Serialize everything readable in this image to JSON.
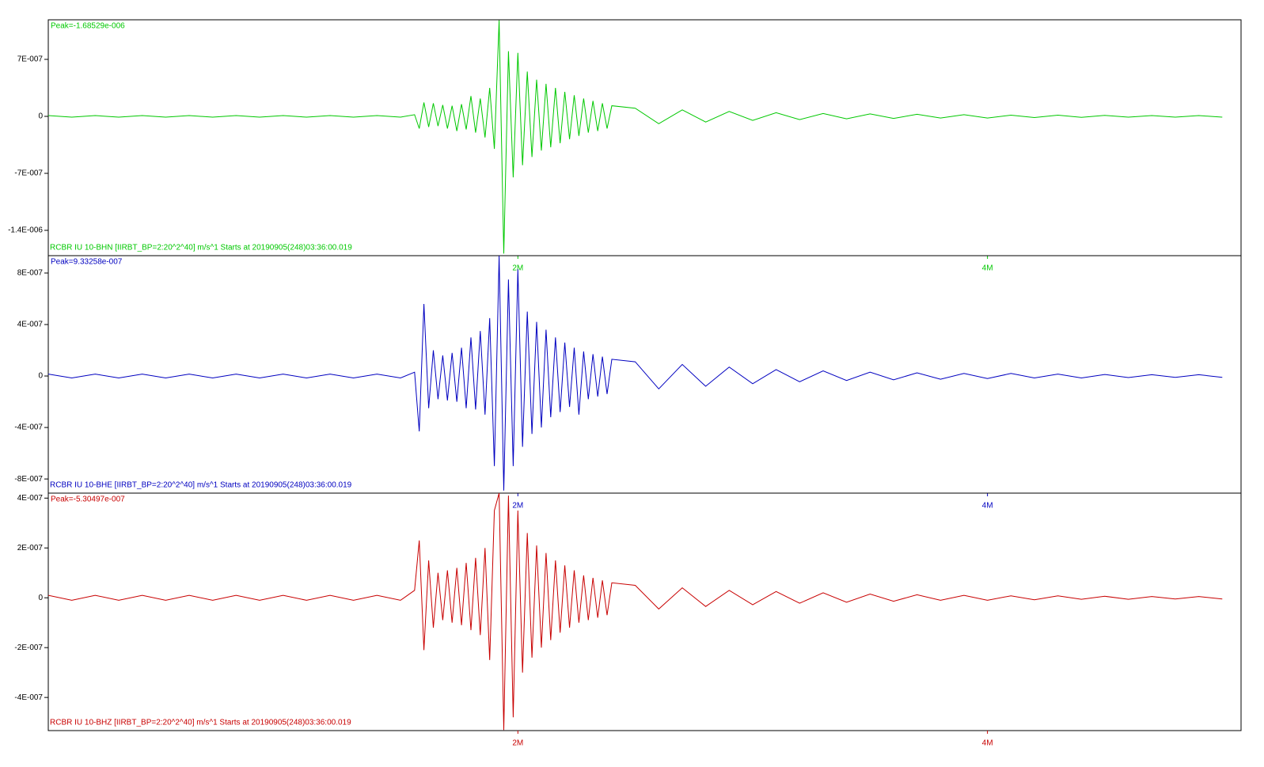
{
  "chart_data": [
    {
      "type": "line",
      "annotation": "Peak=-1.68529e-006",
      "x": [
        0,
        0.1,
        0.2,
        0.3,
        0.4,
        0.5,
        0.6,
        0.7,
        0.8,
        0.9,
        1.0,
        1.1,
        1.2,
        1.3,
        1.4,
        1.5,
        1.56,
        1.58,
        1.6,
        1.62,
        1.64,
        1.66,
        1.68,
        1.7,
        1.72,
        1.74,
        1.76,
        1.78,
        1.8,
        1.82,
        1.84,
        1.86,
        1.88,
        1.9,
        1.92,
        1.94,
        1.96,
        1.98,
        2.0,
        2.02,
        2.04,
        2.06,
        2.08,
        2.1,
        2.12,
        2.14,
        2.16,
        2.18,
        2.2,
        2.22,
        2.24,
        2.26,
        2.28,
        2.3,
        2.32,
        2.34,
        2.36,
        2.38,
        2.4,
        2.5,
        2.6,
        2.7,
        2.8,
        2.9,
        3.0,
        3.1,
        3.2,
        3.3,
        3.4,
        3.5,
        3.6,
        3.7,
        3.8,
        3.9,
        4.0,
        4.1,
        4.2,
        4.3,
        4.4,
        4.5,
        4.6,
        4.7,
        4.8,
        4.9,
        5.0
      ],
      "series": [
        {
          "name": "RCBR IU 10-BHN  [IIRBT_BP=2:20^2^40] m/s^1 Starts at 20190905(248)03:36:00.019",
          "color": "#00c800",
          "values": [
            1e-08,
            -1e-08,
            1e-08,
            -1e-08,
            1e-08,
            -1e-08,
            1e-08,
            -1e-08,
            1e-08,
            -1e-08,
            1e-08,
            -1e-08,
            1e-08,
            -1e-08,
            1e-08,
            -1e-08,
            2e-08,
            -1.5e-07,
            1.7e-07,
            -1.3e-07,
            1.6e-07,
            -1.2e-07,
            1.4e-07,
            -1.5e-07,
            1.3e-07,
            -1.8e-07,
            1.5e-07,
            -1.6e-07,
            2.5e-07,
            -2e-07,
            2.2e-07,
            -2.6e-07,
            3.5e-07,
            -4e-07,
            1.18e-06,
            -1.68529e-06,
            8e-07,
            -7.5e-07,
            7.8e-07,
            -6e-07,
            5.5e-07,
            -5e-07,
            4.5e-07,
            -4.2e-07,
            4e-07,
            -3.8e-07,
            3.5e-07,
            -3.3e-07,
            3e-07,
            -2.8e-07,
            2.6e-07,
            -2.4e-07,
            2.2e-07,
            -2e-07,
            1.9e-07,
            -1.8e-07,
            1.6e-07,
            -1.5e-07,
            1.3e-07,
            1e-07,
            -9e-08,
            8e-08,
            -7e-08,
            6e-08,
            -5e-08,
            4.5e-08,
            -4e-08,
            3.5e-08,
            -3e-08,
            3e-08,
            -2.5e-08,
            2.5e-08,
            -2e-08,
            2e-08,
            -2e-08,
            1.5e-08,
            -1.5e-08,
            1.5e-08,
            -1.2e-08,
            1.2e-08,
            -1e-08,
            1e-08,
            -1e-08,
            1e-08,
            -1e-08
          ]
        }
      ],
      "xlim": [
        0,
        5.08
      ],
      "xticks": [
        {
          "value": 2,
          "label": "2M"
        },
        {
          "value": 4,
          "label": "4M"
        }
      ],
      "ylim": [
        -1.711e-06,
        1.186e-06
      ],
      "yticks": [
        {
          "value": 7e-07,
          "label": "7E-007"
        },
        0,
        {
          "value": -7e-07,
          "label": "-7E-007"
        },
        {
          "value": -1.4e-06,
          "label": "-1.4E-006"
        }
      ]
    },
    {
      "type": "line",
      "annotation": "Peak=9.33258e-007",
      "x": [
        0,
        0.1,
        0.2,
        0.3,
        0.4,
        0.5,
        0.6,
        0.7,
        0.8,
        0.9,
        1.0,
        1.1,
        1.2,
        1.3,
        1.4,
        1.5,
        1.56,
        1.58,
        1.6,
        1.62,
        1.64,
        1.66,
        1.68,
        1.7,
        1.72,
        1.74,
        1.76,
        1.78,
        1.8,
        1.82,
        1.84,
        1.86,
        1.88,
        1.9,
        1.92,
        1.94,
        1.96,
        1.98,
        2.0,
        2.02,
        2.04,
        2.06,
        2.08,
        2.1,
        2.12,
        2.14,
        2.16,
        2.18,
        2.2,
        2.22,
        2.24,
        2.26,
        2.28,
        2.3,
        2.32,
        2.34,
        2.36,
        2.38,
        2.4,
        2.5,
        2.6,
        2.7,
        2.8,
        2.9,
        3.0,
        3.1,
        3.2,
        3.3,
        3.4,
        3.5,
        3.6,
        3.7,
        3.8,
        3.9,
        4.0,
        4.1,
        4.2,
        4.3,
        4.4,
        4.5,
        4.6,
        4.7,
        4.8,
        4.9,
        5.0
      ],
      "series": [
        {
          "name": "RCBR IU 10-BHE  [IIRBT_BP=2:20^2^40] m/s^1 Starts at 20190905(248)03:36:00.019",
          "color": "#0000c0",
          "values": [
            1.5e-08,
            -1.5e-08,
            1.5e-08,
            -1.5e-08,
            1.5e-08,
            -1.5e-08,
            1.5e-08,
            -1.5e-08,
            1.5e-08,
            -1.5e-08,
            1.5e-08,
            -1.5e-08,
            1.5e-08,
            -1.5e-08,
            1.5e-08,
            -1.5e-08,
            3e-08,
            -4.3e-07,
            5.6e-07,
            -2.5e-07,
            2e-07,
            -1.8e-07,
            1.6e-07,
            -1.9e-07,
            1.8e-07,
            -2e-07,
            2.2e-07,
            -2.5e-07,
            3e-07,
            -2.6e-07,
            3.5e-07,
            -3e-07,
            4.5e-07,
            -7e-07,
            9.33258e-07,
            -8.9e-07,
            7.5e-07,
            -7e-07,
            8.3e-07,
            -5.5e-07,
            5e-07,
            -4.5e-07,
            4.2e-07,
            -4e-07,
            3.6e-07,
            -3.2e-07,
            3e-07,
            -2.8e-07,
            2.6e-07,
            -2.4e-07,
            2.2e-07,
            -3e-07,
            1.9e-07,
            -1.8e-07,
            1.7e-07,
            -1.6e-07,
            1.5e-07,
            -1.4e-07,
            1.3e-07,
            1.1e-07,
            -1e-07,
            9e-08,
            -8e-08,
            7e-08,
            -6e-08,
            5e-08,
            -4.5e-08,
            4e-08,
            -3.5e-08,
            3e-08,
            -3e-08,
            2.5e-08,
            -2.5e-08,
            2e-08,
            -2e-08,
            2e-08,
            -1.5e-08,
            1.5e-08,
            -1.5e-08,
            1.2e-08,
            -1.2e-08,
            1e-08,
            -1e-08,
            1e-08,
            -1e-08
          ]
        }
      ],
      "xlim": [
        0,
        5.08
      ],
      "xticks": [
        {
          "value": 2,
          "label": "2M"
        },
        {
          "value": 4,
          "label": "4M"
        }
      ],
      "ylim": [
        -9.1e-07,
        9.35e-07
      ],
      "yticks": [
        {
          "value": 8e-07,
          "label": "8E-007"
        },
        {
          "value": 4e-07,
          "label": "4E-007"
        },
        0,
        {
          "value": -4e-07,
          "label": "-4E-007"
        },
        {
          "value": -8e-07,
          "label": "-8E-007"
        }
      ]
    },
    {
      "type": "line",
      "annotation": "Peak=-5.30497e-007",
      "x": [
        0,
        0.1,
        0.2,
        0.3,
        0.4,
        0.5,
        0.6,
        0.7,
        0.8,
        0.9,
        1.0,
        1.1,
        1.2,
        1.3,
        1.4,
        1.5,
        1.56,
        1.58,
        1.6,
        1.62,
        1.64,
        1.66,
        1.68,
        1.7,
        1.72,
        1.74,
        1.76,
        1.78,
        1.8,
        1.82,
        1.84,
        1.86,
        1.88,
        1.9,
        1.92,
        1.94,
        1.96,
        1.98,
        2.0,
        2.02,
        2.04,
        2.06,
        2.08,
        2.1,
        2.12,
        2.14,
        2.16,
        2.18,
        2.2,
        2.22,
        2.24,
        2.26,
        2.28,
        2.3,
        2.32,
        2.34,
        2.36,
        2.38,
        2.4,
        2.5,
        2.6,
        2.7,
        2.8,
        2.9,
        3.0,
        3.1,
        3.2,
        3.3,
        3.4,
        3.5,
        3.6,
        3.7,
        3.8,
        3.9,
        4.0,
        4.1,
        4.2,
        4.3,
        4.4,
        4.5,
        4.6,
        4.7,
        4.8,
        4.9,
        5.0
      ],
      "series": [
        {
          "name": "RCBR IU 10-BHZ  [IIRBT_BP=2:20^2^40] m/s^1 Starts at 20190905(248)03:36:00.019",
          "color": "#c80000",
          "values": [
            1e-08,
            -1e-08,
            1e-08,
            -1e-08,
            1e-08,
            -1e-08,
            1e-08,
            -1e-08,
            1e-08,
            -1e-08,
            1e-08,
            -1e-08,
            1e-08,
            -1e-08,
            1e-08,
            -1e-08,
            3e-08,
            2.3e-07,
            -2.1e-07,
            1.5e-07,
            -1.2e-07,
            1e-07,
            -9e-08,
            1.1e-07,
            -1e-07,
            1.2e-07,
            -1.1e-07,
            1.4e-07,
            -1.3e-07,
            1.6e-07,
            -1.5e-07,
            2e-07,
            -2.5e-07,
            3.5e-07,
            4.2e-07,
            -5.30497e-07,
            4.1e-07,
            -4.8e-07,
            3.5e-07,
            -3e-07,
            2.6e-07,
            -2.4e-07,
            2.1e-07,
            -2e-07,
            1.8e-07,
            -1.7e-07,
            1.5e-07,
            -1.4e-07,
            1.3e-07,
            -1.2e-07,
            1.1e-07,
            -1e-07,
            9e-08,
            -9e-08,
            8e-08,
            -8e-08,
            7e-08,
            -7e-08,
            6e-08,
            5e-08,
            -4.5e-08,
            4e-08,
            -3.5e-08,
            3e-08,
            -2.8e-08,
            2.5e-08,
            -2.2e-08,
            2e-08,
            -1.8e-08,
            1.5e-08,
            -1.4e-08,
            1.2e-08,
            -1e-08,
            1e-08,
            -1e-08,
            8e-09,
            -8e-09,
            8e-09,
            -6e-09,
            6e-09,
            -6e-09,
            5e-09,
            -5e-09,
            5e-09,
            -5e-09
          ]
        }
      ],
      "xlim": [
        0,
        5.08
      ],
      "xticks": [
        {
          "value": 2,
          "label": "2M"
        },
        {
          "value": 4,
          "label": "4M"
        }
      ],
      "ylim": [
        -5.33e-07,
        4.2e-07
      ],
      "yticks": [
        {
          "value": 4e-07,
          "label": "4E-007"
        },
        {
          "value": 2e-07,
          "label": "2E-007"
        },
        0,
        {
          "value": -2e-07,
          "label": "-2E-007"
        },
        {
          "value": -4e-07,
          "label": "-4E-007"
        }
      ]
    }
  ]
}
